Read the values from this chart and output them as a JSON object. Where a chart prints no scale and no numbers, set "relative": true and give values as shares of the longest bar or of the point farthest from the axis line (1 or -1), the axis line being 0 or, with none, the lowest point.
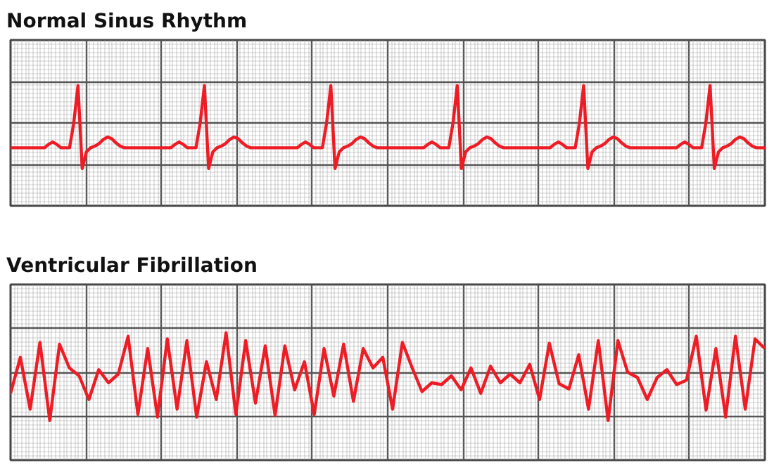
{
  "chart_data": [
    {
      "type": "line",
      "title": "Normal Sinus Rhythm",
      "relative": true,
      "grid": true,
      "tick_labels": false,
      "line_style": "solid",
      "marker": "none",
      "categories": [
        null,
        null,
        null,
        null,
        null,
        null,
        null,
        null,
        null,
        null,
        null,
        null,
        null,
        null,
        null,
        null,
        null,
        null,
        null,
        null,
        null,
        null,
        null,
        null,
        null,
        null,
        null,
        null,
        null,
        null,
        null,
        null,
        null,
        null,
        null,
        null,
        null,
        null,
        null,
        null,
        null,
        null,
        null,
        null,
        null,
        null,
        null,
        null,
        null,
        null,
        null,
        null,
        null,
        null,
        null,
        null,
        null,
        null,
        null,
        null,
        null,
        null,
        null,
        null,
        null,
        null,
        null,
        null,
        null,
        null,
        null,
        null,
        null,
        null,
        null,
        null,
        null,
        null,
        null,
        null,
        null,
        null,
        null,
        null,
        null,
        null,
        null,
        null,
        null,
        null,
        null,
        null,
        null,
        null,
        null,
        null,
        null,
        null,
        null,
        null,
        null,
        null,
        null,
        null,
        null,
        null,
        null,
        null,
        null,
        null,
        null,
        null,
        null,
        null,
        null,
        null,
        null,
        null,
        null,
        null,
        null,
        null,
        null,
        null,
        null,
        null,
        null,
        null,
        null,
        null,
        null,
        null,
        null,
        null,
        null,
        null,
        null,
        null,
        null,
        null,
        null,
        null,
        null,
        null,
        null,
        null,
        null,
        null,
        null,
        null,
        null,
        null,
        null,
        null,
        null,
        null,
        null,
        null,
        null,
        null,
        null,
        null,
        null,
        null,
        null,
        null,
        null,
        null,
        null,
        null,
        null,
        null,
        null,
        null,
        null,
        null,
        null,
        null,
        null,
        null
      ],
      "series": [
        {
          "color": "#ee1c25",
          "values": [
            0.25,
            0.25,
            0.25,
            0.25,
            0.25,
            0.25,
            0.25,
            0.25,
            0.25,
            0.29,
            0.32,
            0.29,
            0.25,
            0.25,
            0.25,
            0.55,
            1,
            0,
            0.2,
            0.25,
            0.27,
            0.3,
            0.35,
            0.38,
            0.36,
            0.31,
            0.27,
            0.25,
            0.25,
            0.25,
            0.25,
            0.25,
            0.25,
            0.25,
            0.25,
            0.25,
            0.25,
            0.25,
            0.25,
            0.29,
            0.32,
            0.29,
            0.25,
            0.25,
            0.25,
            0.55,
            1,
            0,
            0.2,
            0.25,
            0.27,
            0.3,
            0.35,
            0.38,
            0.36,
            0.31,
            0.27,
            0.25,
            0.25,
            0.25,
            0.25,
            0.25,
            0.25,
            0.25,
            0.25,
            0.25,
            0.25,
            0.25,
            0.25,
            0.29,
            0.32,
            0.29,
            0.25,
            0.25,
            0.25,
            0.55,
            1,
            0,
            0.2,
            0.25,
            0.27,
            0.3,
            0.35,
            0.38,
            0.36,
            0.31,
            0.27,
            0.25,
            0.25,
            0.25,
            0.25,
            0.25,
            0.25,
            0.25,
            0.25,
            0.25,
            0.25,
            0.25,
            0.25,
            0.29,
            0.32,
            0.29,
            0.25,
            0.25,
            0.25,
            0.55,
            1,
            0,
            0.2,
            0.25,
            0.27,
            0.3,
            0.35,
            0.38,
            0.36,
            0.31,
            0.27,
            0.25,
            0.25,
            0.25,
            0.25,
            0.25,
            0.25,
            0.25,
            0.25,
            0.25,
            0.25,
            0.25,
            0.25,
            0.29,
            0.32,
            0.29,
            0.25,
            0.25,
            0.25,
            0.55,
            1,
            0,
            0.2,
            0.25,
            0.27,
            0.3,
            0.35,
            0.38,
            0.36,
            0.31,
            0.27,
            0.25,
            0.25,
            0.25,
            0.25,
            0.25,
            0.25,
            0.25,
            0.25,
            0.25,
            0.25,
            0.25,
            0.25,
            0.29,
            0.32,
            0.29,
            0.25,
            0.25,
            0.25,
            0.55,
            1,
            0,
            0.2,
            0.25,
            0.27,
            0.3,
            0.35,
            0.38,
            0.36,
            0.31,
            0.27,
            0.25,
            0.25,
            0.25
          ]
        }
      ]
    },
    {
      "type": "line",
      "title": "Ventricular Fibrillation",
      "relative": true,
      "grid": true,
      "tick_labels": false,
      "line_style": "solid",
      "marker": "none",
      "categories": [
        null,
        null,
        null,
        null,
        null,
        null,
        null,
        null,
        null,
        null,
        null,
        null,
        null,
        null,
        null,
        null,
        null,
        null,
        null,
        null,
        null,
        null,
        null,
        null,
        null,
        null,
        null,
        null,
        null,
        null,
        null,
        null,
        null,
        null,
        null,
        null,
        null,
        null,
        null,
        null,
        null,
        null,
        null,
        null,
        null,
        null,
        null,
        null,
        null,
        null,
        null,
        null,
        null,
        null,
        null,
        null,
        null,
        null,
        null,
        null,
        null,
        null,
        null,
        null,
        null,
        null,
        null,
        null,
        null,
        null,
        null,
        null,
        null,
        null,
        null,
        null,
        null,
        null
      ],
      "series": [
        {
          "color": "#ee1c25",
          "values": [
            0.31,
            0.72,
            0.13,
            0.89,
            0,
            0.87,
            0.6,
            0.51,
            0.24,
            0.58,
            0.43,
            0.53,
            0.96,
            0.07,
            0.82,
            0.04,
            0.93,
            0.13,
            0.91,
            0.04,
            0.67,
            0.24,
            1,
            0.07,
            0.91,
            0.2,
            0.85,
            0.06,
            0.85,
            0.35,
            0.67,
            0.07,
            0.82,
            0.28,
            0.87,
            0.22,
            0.82,
            0.6,
            0.72,
            0.13,
            0.89,
            0.6,
            0.33,
            0.43,
            0.41,
            0.51,
            0.35,
            0.6,
            0.31,
            0.62,
            0.43,
            0.53,
            0.43,
            0.64,
            0.24,
            0.88,
            0.42,
            0.36,
            0.75,
            0.13,
            0.91,
            0,
            0.91,
            0.55,
            0.49,
            0.24,
            0.49,
            0.58,
            0.41,
            0.46,
            0.96,
            0.12,
            0.82,
            0.04,
            0.96,
            0.13,
            0.93,
            0.82
          ]
        }
      ]
    }
  ]
}
